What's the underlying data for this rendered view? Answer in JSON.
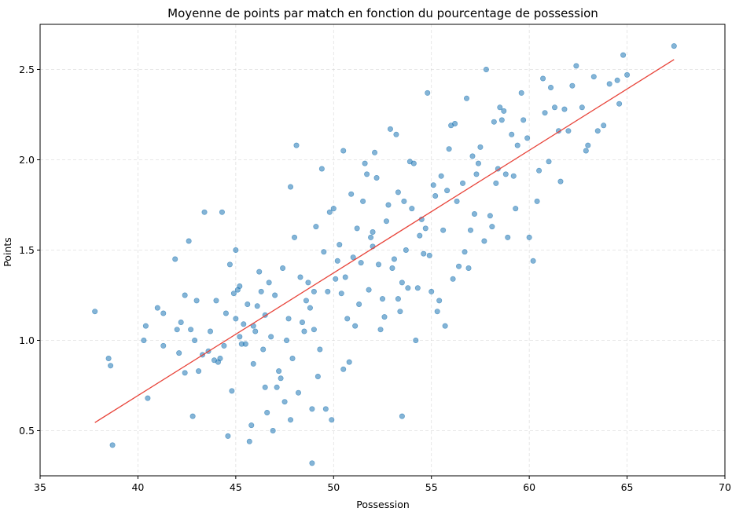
{
  "chart_data": {
    "type": "scatter",
    "title": "Moyenne de points par match en fonction du pourcentage de possession",
    "xlabel": "Possession",
    "ylabel": "Points",
    "xlim": [
      35,
      70
    ],
    "ylim": [
      0.25,
      2.75
    ],
    "xticks": [
      35,
      40,
      45,
      50,
      55,
      60,
      65,
      70
    ],
    "yticks": [
      0.5,
      1.0,
      1.5,
      2.0,
      2.5
    ],
    "xtick_labels": [
      "35",
      "40",
      "45",
      "50",
      "55",
      "60",
      "65",
      "70"
    ],
    "ytick_labels": [
      "0.5",
      "1.0",
      "1.5",
      "2.0",
      "2.5"
    ],
    "grid": true,
    "series": [
      {
        "kind": "points",
        "color": "#1f77b4",
        "x": [
          37.8,
          38.5,
          38.7,
          38.6,
          40.3,
          40.4,
          40.5,
          41.0,
          41.3,
          41.3,
          41.9,
          42.1,
          42.2,
          42.4,
          42.4,
          42.6,
          42.8,
          42.9,
          43.0,
          43.1,
          43.4,
          43.7,
          44.0,
          44.1,
          44.3,
          44.4,
          44.5,
          44.8,
          44.9,
          45.0,
          45.2,
          45.2,
          45.5,
          45.6,
          45.7,
          45.9,
          45.9,
          46.2,
          46.4,
          46.5,
          46.6,
          46.8,
          47.0,
          47.2,
          47.4,
          47.5,
          47.7,
          47.8,
          47.9,
          48.1,
          48.3,
          48.5,
          48.8,
          48.9,
          49.1,
          49.2,
          49.4,
          49.7,
          49.9,
          50.1,
          50.3,
          50.5,
          50.7,
          50.9,
          51.2,
          51.4,
          51.6,
          51.8,
          52.0,
          52.2,
          52.5,
          52.7,
          52.9,
          53.1,
          53.3,
          53.5,
          53.5,
          53.7,
          54.0,
          54.1,
          54.3,
          54.5,
          54.8,
          54.9,
          55.1,
          55.4,
          55.6,
          55.9,
          56.1,
          56.3,
          56.6,
          56.8,
          57.0,
          57.3,
          57.5,
          57.8,
          58.0,
          58.3,
          58.6,
          58.9,
          59.1,
          59.3,
          59.6,
          59.9,
          60.2,
          60.5,
          60.8,
          61.0,
          61.3,
          61.6,
          62.0,
          62.2,
          62.7,
          63.0,
          63.3,
          63.8,
          64.5,
          64.6,
          64.8,
          65.0,
          42.0,
          43.6,
          44.6,
          45.4,
          46.1,
          46.9,
          47.6,
          48.2,
          48.7,
          49.0,
          49.6,
          50.2,
          50.8,
          51.3,
          51.9,
          52.4,
          53.0,
          53.6,
          54.2,
          54.7,
          55.3,
          55.8,
          56.4,
          57.1,
          57.7,
          58.2,
          58.8,
          59.4,
          60.0,
          61.1,
          62.4,
          63.5,
          64.1,
          67.4,
          44.2,
          45.0,
          45.8,
          46.7,
          47.3,
          48.0,
          48.6,
          49.3,
          49.8,
          50.6,
          51.1,
          51.7,
          52.3,
          52.8,
          53.4,
          53.9,
          54.6,
          55.2,
          55.7,
          56.2,
          56.9,
          57.4,
          58.1,
          58.7,
          59.2,
          60.4,
          61.8,
          62.9,
          45.3,
          46.3,
          47.1,
          48.4,
          49.5,
          50.4,
          51.5,
          52.6,
          53.2,
          54.4,
          55.0,
          56.0,
          57.2,
          58.4,
          59.7,
          61.5,
          43.3,
          44.7,
          46.0,
          47.8,
          49.0,
          50.0,
          51.0,
          52.1,
          53.8,
          55.5,
          56.7,
          58.5,
          60.7,
          42.7,
          43.9,
          45.1,
          46.5,
          48.9,
          50.5,
          52.0,
          53.3
        ],
        "y": [
          1.16,
          0.9,
          0.42,
          0.86,
          1.0,
          1.08,
          0.68,
          1.18,
          0.97,
          1.15,
          1.45,
          0.93,
          1.1,
          1.25,
          0.82,
          1.55,
          0.58,
          1.0,
          1.22,
          0.83,
          1.71,
          1.05,
          1.22,
          0.88,
          1.71,
          0.97,
          1.15,
          0.72,
          1.26,
          1.5,
          1.02,
          1.3,
          0.98,
          1.2,
          0.44,
          1.08,
          0.87,
          1.38,
          0.95,
          1.14,
          0.6,
          1.02,
          1.25,
          0.83,
          1.4,
          0.66,
          1.12,
          1.85,
          0.9,
          2.08,
          1.35,
          1.05,
          1.18,
          0.62,
          1.63,
          0.8,
          1.95,
          1.27,
          0.56,
          1.34,
          1.53,
          2.05,
          1.12,
          1.81,
          1.62,
          1.43,
          1.98,
          1.28,
          1.52,
          1.9,
          1.23,
          1.66,
          2.17,
          1.45,
          1.82,
          0.58,
          1.32,
          1.5,
          1.73,
          1.98,
          1.29,
          1.67,
          2.37,
          1.47,
          1.86,
          1.22,
          1.61,
          2.06,
          1.34,
          1.77,
          1.87,
          2.34,
          1.61,
          1.92,
          2.07,
          2.5,
          1.69,
          1.87,
          2.22,
          1.57,
          2.14,
          1.73,
          2.37,
          2.12,
          1.44,
          1.94,
          2.26,
          1.99,
          2.29,
          1.88,
          2.16,
          2.41,
          2.29,
          2.08,
          2.46,
          2.19,
          2.44,
          2.31,
          2.58,
          2.47,
          1.06,
          0.94,
          0.47,
          1.09,
          1.19,
          0.5,
          1.0,
          0.71,
          1.32,
          1.06,
          0.62,
          1.44,
          0.88,
          1.2,
          1.57,
          1.06,
          1.4,
          1.77,
          1.0,
          1.62,
          1.16,
          1.83,
          1.41,
          2.02,
          1.55,
          2.21,
          1.92,
          2.08,
          1.57,
          2.4,
          2.52,
          2.16,
          2.42,
          2.63,
          0.9,
          1.12,
          0.53,
          1.32,
          0.79,
          1.57,
          1.22,
          0.95,
          1.71,
          1.35,
          1.08,
          1.92,
          1.42,
          1.75,
          1.16,
          1.99,
          1.48,
          1.8,
          1.08,
          2.2,
          1.4,
          1.98,
          1.63,
          2.27,
          1.91,
          1.77,
          2.28,
          2.05,
          0.98,
          1.27,
          0.74,
          1.1,
          1.49,
          1.26,
          1.77,
          1.13,
          2.14,
          1.58,
          1.27,
          2.19,
          1.7,
          1.95,
          2.22,
          2.16,
          0.92,
          1.42,
          1.05,
          0.56,
          1.27,
          1.73,
          1.46,
          2.04,
          1.29,
          1.91,
          1.49,
          2.29,
          2.45,
          1.06,
          0.89,
          1.28,
          0.74,
          0.32,
          0.84,
          1.6,
          1.23
        ]
      },
      {
        "kind": "fit-line",
        "color": "#e8443a",
        "x": [
          37.8,
          67.4
        ],
        "y": [
          0.545,
          2.555
        ]
      }
    ]
  }
}
